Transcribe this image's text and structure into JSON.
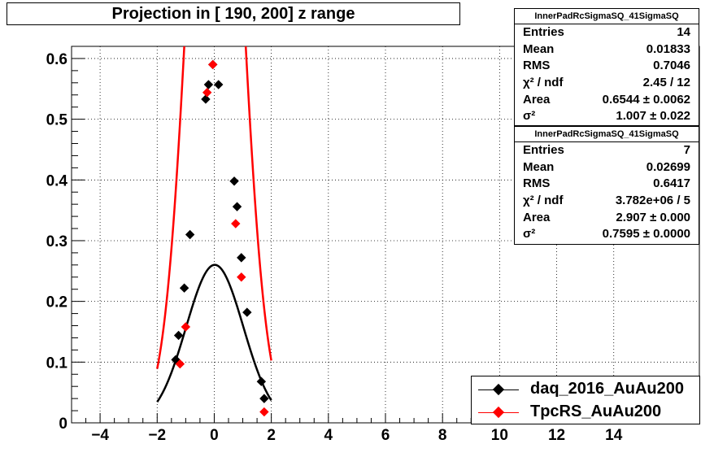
{
  "title": "Projection in [ 190, 200] z range",
  "stats": [
    {
      "name": "InnerPadRcSigmaSQ_41SigmaSQ",
      "rows": [
        {
          "label": "Entries",
          "value": "14"
        },
        {
          "label": "Mean",
          "value": "0.01833"
        },
        {
          "label": "RMS",
          "value": "0.7046"
        },
        {
          "label": "χ² / ndf",
          "value": "2.45 / 12"
        },
        {
          "label": "Area",
          "value": "0.6544 ± 0.0062"
        },
        {
          "label": "σ²",
          "value": "1.007 ± 0.022"
        }
      ]
    },
    {
      "name": "InnerPadRcSigmaSQ_41SigmaSQ",
      "rows": [
        {
          "label": "Entries",
          "value": "7"
        },
        {
          "label": "Mean",
          "value": "0.02699"
        },
        {
          "label": "RMS",
          "value": "0.6417"
        },
        {
          "label": "χ² / ndf",
          "value": "3.782e+06 / 5"
        },
        {
          "label": "Area",
          "value": "2.907 ± 0.000"
        },
        {
          "label": "σ²",
          "value": "0.7595 ± 0.0000"
        }
      ]
    }
  ],
  "legend": [
    {
      "label": "daq_2016_AuAu200",
      "color": "#000000"
    },
    {
      "label": "TpcRS_AuAu200",
      "color": "#ff0000"
    }
  ],
  "chart_data": {
    "type": "scatter",
    "title": "Projection in [ 190, 200] z range",
    "xlim": [
      -5,
      17
    ],
    "ylim": [
      0,
      0.62
    ],
    "x_ticks": [
      -4,
      -2,
      0,
      2,
      4,
      6,
      8,
      10,
      12,
      14
    ],
    "x_tick_labels": [
      "−4",
      "−2",
      "0",
      "2",
      "4",
      "6",
      "8",
      "10",
      "12",
      "14"
    ],
    "y_ticks": [
      0,
      0.1,
      0.2,
      0.3,
      0.4,
      0.5,
      0.6
    ],
    "y_tick_labels": [
      "0",
      "0.1",
      "0.2",
      "0.3",
      "0.4",
      "0.5",
      "0.6"
    ],
    "grid": true,
    "series": [
      {
        "name": "daq_2016_AuAu200",
        "color": "#000000",
        "marker": "diamond",
        "points": [
          [
            -1.35,
            0.104
          ],
          [
            -1.25,
            0.144
          ],
          [
            -1.05,
            0.222
          ],
          [
            -0.85,
            0.31
          ],
          [
            -0.3,
            0.533
          ],
          [
            -0.2,
            0.557
          ],
          [
            -0.05,
            0.59
          ],
          [
            0.15,
            0.557
          ],
          [
            0.7,
            0.398
          ],
          [
            0.8,
            0.356
          ],
          [
            0.95,
            0.272
          ],
          [
            1.15,
            0.182
          ],
          [
            1.65,
            0.068
          ],
          [
            1.75,
            0.04
          ]
        ],
        "fit": {
          "area": 0.6544,
          "mean": 0.01833,
          "sigma2": 1.007
        }
      },
      {
        "name": "TpcRS_AuAu200",
        "color": "#ff0000",
        "marker": "diamond",
        "points": [
          [
            -1.2,
            0.097
          ],
          [
            -1.0,
            0.158
          ],
          [
            -0.25,
            0.544
          ],
          [
            -0.05,
            0.59
          ],
          [
            0.75,
            0.328
          ],
          [
            0.95,
            0.24
          ],
          [
            1.75,
            0.018
          ]
        ],
        "fit": {
          "area": 2.907,
          "mean": 0.02699,
          "sigma2": 0.7595
        }
      }
    ]
  }
}
